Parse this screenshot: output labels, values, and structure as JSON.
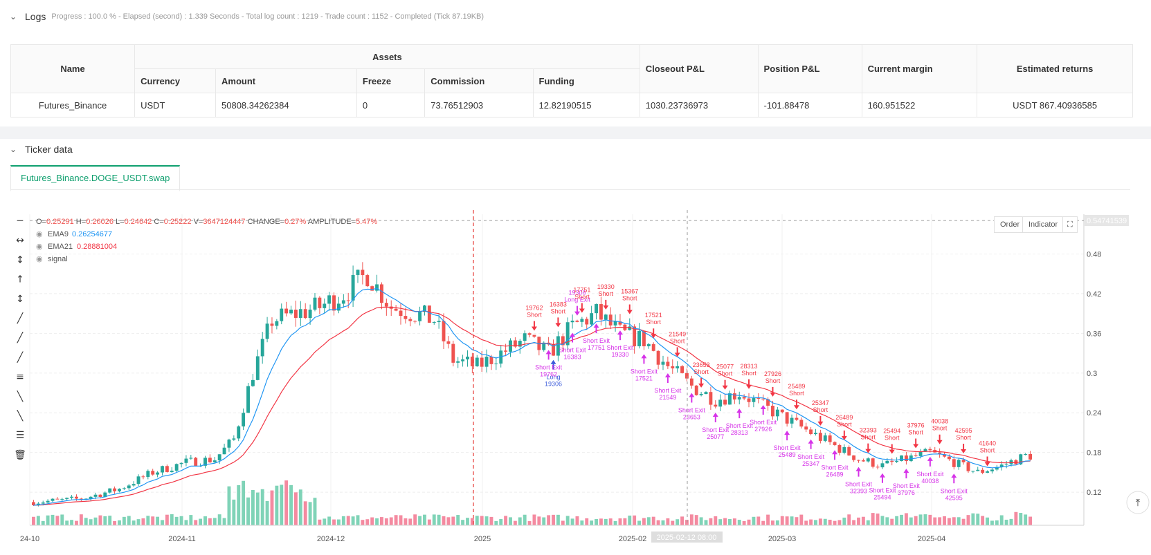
{
  "logs": {
    "title": "Logs",
    "status": "Progress : 100.0 % - Elapsed (second) : 1.339  Seconds - Total log count : 1219 - Trade count : 1152 - Completed (Tick 87.19KB)"
  },
  "assets_table": {
    "headers": {
      "name": "Name",
      "assets": "Assets",
      "currency": "Currency",
      "amount": "Amount",
      "freeze": "Freeze",
      "commission": "Commission",
      "funding": "Funding",
      "closeout_pnl": "Closeout P&L",
      "position_pnl": "Position P&L",
      "current_margin": "Current margin",
      "estimated_returns": "Estimated returns"
    },
    "row": {
      "name": "Futures_Binance",
      "currency": "USDT",
      "amount": "50808.34262384",
      "freeze": "0",
      "commission": "73.76512903",
      "funding": "12.82190515",
      "closeout_pnl": "1030.23736973",
      "position_pnl": "-101.88478",
      "current_margin": "160.951522",
      "estimated_returns": "USDT 867.40936585"
    }
  },
  "ticker": {
    "title": "Ticker data",
    "tab": "Futures_Binance.DOGE_USDT.swap",
    "buttons": {
      "order": "Order",
      "indicator": "Indicator"
    },
    "ohlc": {
      "o_label": "O=",
      "o": "0.25291",
      "h_label": "H=",
      "h": "0.26026",
      "l_label": "L=",
      "l": "0.24642",
      "c_label": "C=",
      "c": "0.25222",
      "v_label": "V=",
      "v": "3647124447",
      "change_label": "CHANGE=",
      "change": "0.27%",
      "amp_label": "AMPLITUDE=",
      "amp": "5.47%"
    },
    "legend": [
      {
        "name": "EMA9",
        "value": "0.26254677",
        "color": "#2196f3"
      },
      {
        "name": "EMA21",
        "value": "0.28881004",
        "color": "#f23645"
      },
      {
        "name": "signal",
        "value": "",
        "color": "#888888"
      }
    ],
    "price_marker": "0.54741539",
    "crosshair_date": "2025-02-12 08:00",
    "colors": {
      "up": "#26a69a",
      "down": "#ef5350",
      "ema9": "#2196f3",
      "ema21": "#f23645",
      "signal": "#d633e8"
    }
  },
  "chart_data": {
    "type": "candlestick",
    "x_ticks": [
      "24-10",
      "2024-11",
      "2024-12",
      "2025",
      "2025-02",
      "2025-03",
      "2025-04"
    ],
    "y_ticks": [
      0.12,
      0.18,
      0.24,
      0.3,
      0.36,
      0.42,
      0.48
    ],
    "ylim": [
      0.07,
      0.54
    ],
    "close_anchor": [
      [
        0,
        0.105
      ],
      [
        10,
        0.11
      ],
      [
        18,
        0.125
      ],
      [
        25,
        0.15
      ],
      [
        32,
        0.165
      ],
      [
        38,
        0.17
      ],
      [
        42,
        0.2
      ],
      [
        46,
        0.3
      ],
      [
        50,
        0.38
      ],
      [
        55,
        0.39
      ],
      [
        60,
        0.4
      ],
      [
        65,
        0.42
      ],
      [
        70,
        0.45
      ],
      [
        75,
        0.4
      ],
      [
        80,
        0.39
      ],
      [
        84,
        0.38
      ],
      [
        88,
        0.32
      ],
      [
        93,
        0.31
      ],
      [
        98,
        0.33
      ],
      [
        103,
        0.35
      ],
      [
        108,
        0.33
      ],
      [
        113,
        0.37
      ],
      [
        118,
        0.39
      ],
      [
        123,
        0.36
      ],
      [
        128,
        0.35
      ],
      [
        133,
        0.31
      ],
      [
        138,
        0.28
      ],
      [
        143,
        0.26
      ],
      [
        148,
        0.27
      ],
      [
        153,
        0.25
      ],
      [
        158,
        0.23
      ],
      [
        163,
        0.21
      ],
      [
        168,
        0.19
      ],
      [
        173,
        0.17
      ],
      [
        178,
        0.16
      ],
      [
        183,
        0.17
      ],
      [
        188,
        0.18
      ],
      [
        193,
        0.165
      ],
      [
        198,
        0.15
      ],
      [
        203,
        0.16
      ],
      [
        208,
        0.175
      ]
    ],
    "signals": [
      {
        "kind": "short",
        "text": "Short",
        "id": "19762"
      },
      {
        "kind": "long",
        "text": "Long",
        "id": "19306"
      },
      {
        "kind": "long-exit",
        "text": "Long Exit",
        "id": "19306"
      },
      {
        "kind": "short",
        "text": "Short",
        "id": "16383"
      },
      {
        "kind": "short",
        "text": "Short",
        "id": "17751"
      },
      {
        "kind": "short",
        "text": "Short",
        "id": "19330"
      },
      {
        "kind": "short",
        "text": "Short",
        "id": "15367"
      },
      {
        "kind": "short",
        "text": "Short",
        "id": "17521"
      },
      {
        "kind": "short",
        "text": "Short",
        "id": "21549"
      },
      {
        "kind": "short",
        "text": "Short",
        "id": "23653"
      },
      {
        "kind": "short",
        "text": "Short",
        "id": "25077"
      },
      {
        "kind": "short",
        "text": "Short",
        "id": "28313"
      },
      {
        "kind": "short",
        "text": "Short",
        "id": "27926"
      },
      {
        "kind": "short",
        "text": "Short",
        "id": "25489"
      },
      {
        "kind": "short",
        "text": "Short",
        "id": "25347"
      },
      {
        "kind": "short",
        "text": "Short",
        "id": "26489"
      },
      {
        "kind": "short",
        "text": "Short",
        "id": "32393"
      },
      {
        "kind": "short",
        "text": "Short",
        "id": "25494"
      },
      {
        "kind": "short",
        "text": "Short",
        "id": "37976"
      },
      {
        "kind": "short",
        "text": "Short",
        "id": "40038"
      },
      {
        "kind": "short",
        "text": "Short",
        "id": "42595"
      },
      {
        "kind": "short",
        "text": "Short",
        "id": "41640"
      },
      {
        "kind": "short-exit",
        "text": "Short Exit",
        "id": "19762"
      },
      {
        "kind": "short-exit",
        "text": "Short Exit",
        "id": "16383"
      },
      {
        "kind": "short-exit",
        "text": "Short Exit",
        "id": "17751"
      },
      {
        "kind": "short-exit",
        "text": "Short Exit",
        "id": "19330"
      },
      {
        "kind": "short-exit",
        "text": "Short Exit",
        "id": "17521"
      },
      {
        "kind": "short-exit",
        "text": "Short Exit",
        "id": "21549"
      },
      {
        "kind": "short-exit",
        "text": "Short Exit",
        "id": "23653"
      },
      {
        "kind": "short-exit",
        "text": "Short Exit",
        "id": "25077"
      },
      {
        "kind": "short-exit",
        "text": "Short Exit",
        "id": "28313"
      },
      {
        "kind": "short-exit",
        "text": "Short Exit",
        "id": "27926"
      },
      {
        "kind": "short-exit",
        "text": "Short Exit",
        "id": "25489"
      },
      {
        "kind": "short-exit",
        "text": "Short Exit",
        "id": "25347"
      },
      {
        "kind": "short-exit",
        "text": "Short Exit",
        "id": "26489"
      },
      {
        "kind": "short-exit",
        "text": "Short Exit",
        "id": "32393"
      },
      {
        "kind": "short-exit",
        "text": "Short Exit",
        "id": "25494"
      },
      {
        "kind": "short-exit",
        "text": "Short Exit",
        "id": "37976"
      },
      {
        "kind": "short-exit",
        "text": "Short Exit",
        "id": "40038"
      },
      {
        "kind": "short-exit",
        "text": "Short Exit",
        "id": "42595"
      }
    ]
  }
}
